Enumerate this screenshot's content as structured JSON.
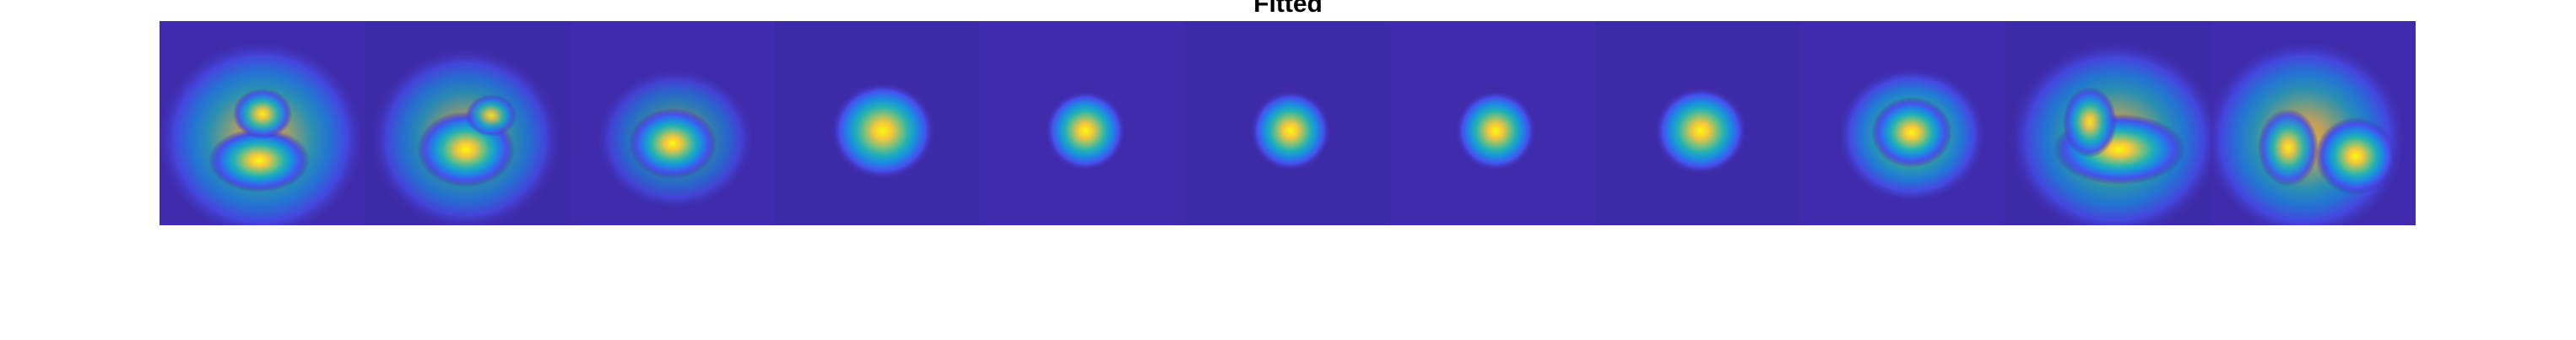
{
  "title": "Fitted"
}
